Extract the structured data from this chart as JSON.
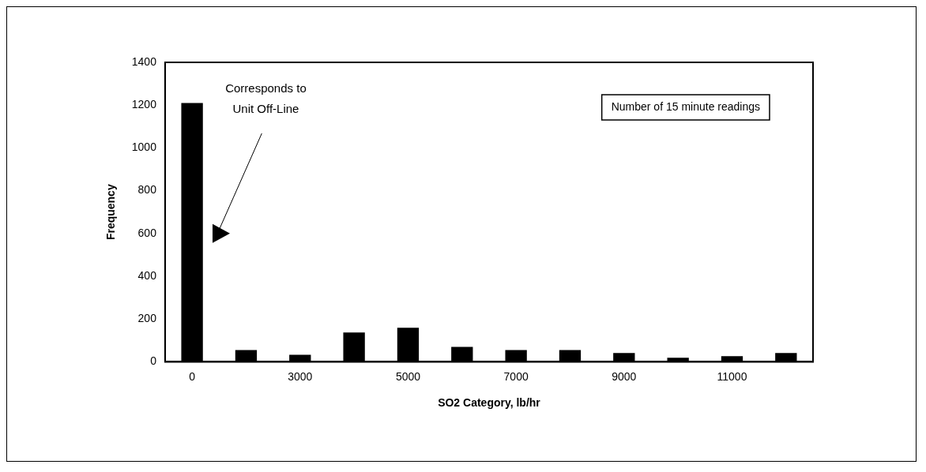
{
  "chart_data": {
    "type": "bar",
    "xlabel": "SO2 Category, lb/hr",
    "ylabel": "Frequency",
    "categories": [
      "0",
      null,
      "3000",
      null,
      "5000",
      null,
      "7000",
      null,
      "9000",
      null,
      "11000",
      null
    ],
    "values": [
      1210,
      55,
      33,
      137,
      159,
      70,
      55,
      55,
      41,
      19,
      26,
      41
    ],
    "color": "#000000",
    "ylim": [
      0,
      1400
    ],
    "yticks": [
      0,
      200,
      400,
      600,
      800,
      1000,
      1200,
      1400
    ],
    "annotations": [
      "Corresponds to\nUnit Off-Line",
      "Number of 15 minute readings"
    ],
    "grid": false,
    "legend": false
  }
}
